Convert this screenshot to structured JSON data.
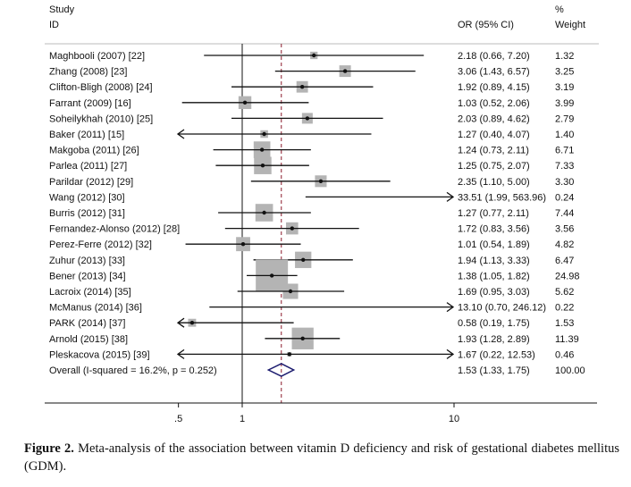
{
  "chart_data": {
    "type": "forest",
    "headers": {
      "study_line1": "Study",
      "study_line2": "ID",
      "or": "OR (95% CI)",
      "weight_line1": "%",
      "weight_line2": "Weight"
    },
    "x_scale": "log",
    "xlim": [
      0.5,
      10
    ],
    "x_ticks": [
      {
        "value": 0.5,
        "label": ".5"
      },
      {
        "value": 1,
        "label": "1"
      },
      {
        "value": 10,
        "label": "10"
      }
    ],
    "null_line": 1,
    "studies": [
      {
        "id": "Maghbooli (2007) [22]",
        "or": 2.18,
        "lo": 0.66,
        "hi": 7.2,
        "text": "2.18 (0.66, 7.20)",
        "weight": "1.32"
      },
      {
        "id": "Zhang (2008) [23]",
        "or": 3.06,
        "lo": 1.43,
        "hi": 6.57,
        "text": "3.06 (1.43, 6.57)",
        "weight": "3.25"
      },
      {
        "id": "Clifton-Bligh (2008) [24]",
        "or": 1.92,
        "lo": 0.89,
        "hi": 4.15,
        "text": "1.92 (0.89, 4.15)",
        "weight": "3.19"
      },
      {
        "id": "Farrant (2009) [16]",
        "or": 1.03,
        "lo": 0.52,
        "hi": 2.06,
        "text": "1.03 (0.52, 2.06)",
        "weight": "3.99"
      },
      {
        "id": "Soheilykhah (2010) [25]",
        "or": 2.03,
        "lo": 0.89,
        "hi": 4.62,
        "text": "2.03 (0.89, 4.62)",
        "weight": "2.79"
      },
      {
        "id": "Baker (2011) [15]",
        "or": 1.27,
        "lo": 0.4,
        "hi": 4.07,
        "text": "1.27 (0.40, 4.07)",
        "weight": "1.40"
      },
      {
        "id": "Makgoba (2011) [26]",
        "or": 1.24,
        "lo": 0.73,
        "hi": 2.11,
        "text": "1.24 (0.73, 2.11)",
        "weight": "6.71"
      },
      {
        "id": "Parlea (2011) [27]",
        "or": 1.25,
        "lo": 0.75,
        "hi": 2.07,
        "text": "1.25 (0.75, 2.07)",
        "weight": "7.33"
      },
      {
        "id": "Parildar (2012) [29]",
        "or": 2.35,
        "lo": 1.1,
        "hi": 5.0,
        "text": "2.35 (1.10, 5.00)",
        "weight": "3.30"
      },
      {
        "id": "Wang (2012) [30]",
        "or": 33.51,
        "lo": 1.99,
        "hi": 563.96,
        "text": "33.51 (1.99, 563.96)",
        "weight": "0.24"
      },
      {
        "id": "Burris (2012) [31]",
        "or": 1.27,
        "lo": 0.77,
        "hi": 2.11,
        "text": "1.27 (0.77, 2.11)",
        "weight": "7.44"
      },
      {
        "id": "Fernandez-Alonso (2012) [28]",
        "or": 1.72,
        "lo": 0.83,
        "hi": 3.56,
        "text": "1.72 (0.83, 3.56)",
        "weight": "3.56"
      },
      {
        "id": "Perez-Ferre (2012) [32]",
        "or": 1.01,
        "lo": 0.54,
        "hi": 1.89,
        "text": "1.01 (0.54, 1.89)",
        "weight": "4.82"
      },
      {
        "id": "Zuhur (2013) [33]",
        "or": 1.94,
        "lo": 1.13,
        "hi": 3.33,
        "text": "1.94 (1.13, 3.33)",
        "weight": "6.47"
      },
      {
        "id": "Bener (2013) [34]",
        "or": 1.38,
        "lo": 1.05,
        "hi": 1.82,
        "text": "1.38 (1.05, 1.82)",
        "weight": "24.98"
      },
      {
        "id": "Lacroix (2014) [35]",
        "or": 1.69,
        "lo": 0.95,
        "hi": 3.03,
        "text": "1.69 (0.95, 3.03)",
        "weight": "5.62"
      },
      {
        "id": "McManus (2014) [36]",
        "or": 13.1,
        "lo": 0.7,
        "hi": 246.12,
        "text": "13.10 (0.70, 246.12)",
        "weight": "0.22"
      },
      {
        "id": "PARK (2014) [37]",
        "or": 0.58,
        "lo": 0.19,
        "hi": 1.75,
        "text": "0.58 (0.19, 1.75)",
        "weight": "1.53"
      },
      {
        "id": "Arnold (2015) [38]",
        "or": 1.93,
        "lo": 1.28,
        "hi": 2.89,
        "text": "1.93 (1.28, 2.89)",
        "weight": "11.39"
      },
      {
        "id": "Pleskacova (2015) [39]",
        "or": 1.67,
        "lo": 0.22,
        "hi": 12.53,
        "text": "1.67 (0.22, 12.53)",
        "weight": "0.46"
      }
    ],
    "overall": {
      "id": "Overall  (I-squared = 16.2%, p = 0.252)",
      "or": 1.53,
      "lo": 1.33,
      "hi": 1.75,
      "text": "1.53 (1.33, 1.75)",
      "weight": "100.00"
    },
    "colors": {
      "box": "#b4b4b4",
      "overall_line": "#8b1a2b",
      "diamond": "#1a1a6e"
    }
  },
  "caption": {
    "label": "Figure 2.",
    "text": " Meta-analysis of the association between vitamin D deficiency and risk of gestational diabetes mellitus (GDM)."
  }
}
